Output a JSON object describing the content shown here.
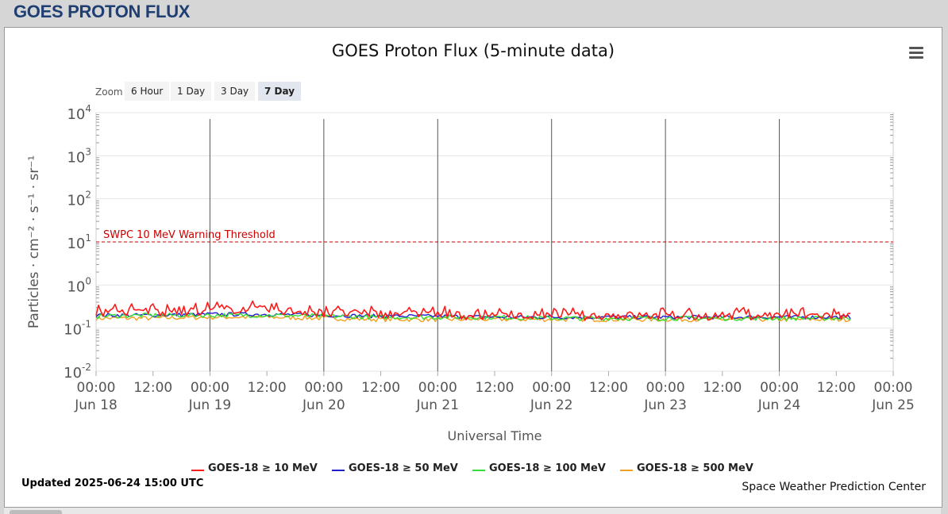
{
  "page": {
    "heading": "GOES PROTON FLUX"
  },
  "zoom": {
    "label": "Zoom",
    "buttons": [
      "6 Hour",
      "1 Day",
      "3 Day",
      "7 Day"
    ],
    "selected": "7 Day"
  },
  "footer": {
    "updated": "Updated 2025-06-24 15:00 UTC",
    "credit": "Space Weather Prediction Center"
  },
  "chart_data": {
    "type": "line",
    "title": "GOES Proton Flux (5-minute data)",
    "xlabel": "Universal Time",
    "ylabel": "Particles · cm⁻² · s⁻¹ · sr⁻¹",
    "yscale": "log",
    "ylim": [
      0.01,
      10000
    ],
    "y_ticks": [
      {
        "base": "10",
        "exp": "-2",
        "value": 0.01
      },
      {
        "base": "10",
        "exp": "-1",
        "value": 0.1
      },
      {
        "base": "10",
        "exp": "0",
        "value": 1
      },
      {
        "base": "10",
        "exp": "1",
        "value": 10
      },
      {
        "base": "10",
        "exp": "2",
        "value": 100
      },
      {
        "base": "10",
        "exp": "3",
        "value": 1000
      },
      {
        "base": "10",
        "exp": "4",
        "value": 10000
      }
    ],
    "xlim": [
      "2025-06-18 00:00",
      "2025-06-25 00:00"
    ],
    "x_ticks": [
      {
        "time": "00:00",
        "date": "Jun 18"
      },
      {
        "time": "12:00",
        "date": ""
      },
      {
        "time": "00:00",
        "date": "Jun 19"
      },
      {
        "time": "12:00",
        "date": ""
      },
      {
        "time": "00:00",
        "date": "Jun 20"
      },
      {
        "time": "12:00",
        "date": ""
      },
      {
        "time": "00:00",
        "date": "Jun 21"
      },
      {
        "time": "12:00",
        "date": ""
      },
      {
        "time": "00:00",
        "date": "Jun 22"
      },
      {
        "time": "12:00",
        "date": ""
      },
      {
        "time": "00:00",
        "date": "Jun 23"
      },
      {
        "time": "12:00",
        "date": ""
      },
      {
        "time": "00:00",
        "date": "Jun 24"
      },
      {
        "time": "12:00",
        "date": ""
      },
      {
        "time": "00:00",
        "date": "Jun 25"
      }
    ],
    "day_lines": [
      "2025-06-19 00:00",
      "2025-06-20 00:00",
      "2025-06-21 00:00",
      "2025-06-22 00:00",
      "2025-06-23 00:00",
      "2025-06-24 00:00"
    ],
    "threshold": {
      "label": "SWPC 10 MeV Warning Threshold",
      "value": 10,
      "color": "#cc0000"
    },
    "series": [
      {
        "name": "GOES-18 ≥ 10 MeV",
        "color": "#ff1a1a",
        "x": [
          "2025-06-18 00:00",
          "2025-06-18 06:00",
          "2025-06-18 12:00",
          "2025-06-18 18:00",
          "2025-06-19 00:00",
          "2025-06-19 06:00",
          "2025-06-19 12:00",
          "2025-06-19 18:00",
          "2025-06-20 00:00",
          "2025-06-20 06:00",
          "2025-06-20 12:00",
          "2025-06-20 18:00",
          "2025-06-21 00:00",
          "2025-06-21 06:00",
          "2025-06-21 12:00",
          "2025-06-21 18:00",
          "2025-06-22 00:00",
          "2025-06-22 06:00",
          "2025-06-22 12:00",
          "2025-06-22 18:00",
          "2025-06-23 00:00",
          "2025-06-23 06:00",
          "2025-06-23 12:00",
          "2025-06-23 18:00",
          "2025-06-24 00:00",
          "2025-06-24 06:00",
          "2025-06-24 12:00",
          "2025-06-24 15:00"
        ],
        "y": [
          0.23,
          0.24,
          0.25,
          0.24,
          0.27,
          0.28,
          0.27,
          0.25,
          0.23,
          0.22,
          0.22,
          0.21,
          0.21,
          0.2,
          0.2,
          0.19,
          0.19,
          0.19,
          0.2,
          0.2,
          0.19,
          0.19,
          0.2,
          0.2,
          0.2,
          0.2,
          0.2,
          0.19
        ]
      },
      {
        "name": "GOES-18 ≥ 50 MeV",
        "color": "#1f1fcc",
        "x": [
          "2025-06-18 00:00",
          "2025-06-18 12:00",
          "2025-06-19 00:00",
          "2025-06-19 12:00",
          "2025-06-20 00:00",
          "2025-06-20 12:00",
          "2025-06-21 00:00",
          "2025-06-21 12:00",
          "2025-06-22 00:00",
          "2025-06-22 12:00",
          "2025-06-23 00:00",
          "2025-06-23 12:00",
          "2025-06-24 00:00",
          "2025-06-24 12:00",
          "2025-06-24 15:00"
        ],
        "y": [
          0.2,
          0.2,
          0.21,
          0.21,
          0.2,
          0.19,
          0.19,
          0.18,
          0.18,
          0.18,
          0.18,
          0.18,
          0.18,
          0.18,
          0.18
        ]
      },
      {
        "name": "GOES-18 ≥ 100 MeV",
        "color": "#33dd33",
        "x": [
          "2025-06-18 00:00",
          "2025-06-18 12:00",
          "2025-06-19 00:00",
          "2025-06-19 12:00",
          "2025-06-20 00:00",
          "2025-06-20 12:00",
          "2025-06-21 00:00",
          "2025-06-21 12:00",
          "2025-06-22 00:00",
          "2025-06-22 12:00",
          "2025-06-23 00:00",
          "2025-06-23 12:00",
          "2025-06-24 00:00",
          "2025-06-24 12:00",
          "2025-06-24 15:00"
        ],
        "y": [
          0.19,
          0.2,
          0.2,
          0.2,
          0.19,
          0.18,
          0.18,
          0.18,
          0.17,
          0.17,
          0.17,
          0.17,
          0.17,
          0.17,
          0.17
        ]
      },
      {
        "name": "GOES-18 ≥ 500 MeV",
        "color": "#f0a020",
        "x": [
          "2025-06-18 00:00",
          "2025-06-18 12:00",
          "2025-06-19 00:00",
          "2025-06-19 12:00",
          "2025-06-20 00:00",
          "2025-06-20 12:00",
          "2025-06-21 00:00",
          "2025-06-21 12:00",
          "2025-06-22 00:00",
          "2025-06-22 12:00",
          "2025-06-23 00:00",
          "2025-06-23 12:00",
          "2025-06-24 00:00",
          "2025-06-24 12:00",
          "2025-06-24 15:00"
        ],
        "y": [
          0.17,
          0.17,
          0.18,
          0.18,
          0.17,
          0.16,
          0.16,
          0.16,
          0.16,
          0.16,
          0.16,
          0.16,
          0.16,
          0.16,
          0.16
        ]
      }
    ],
    "grid": true,
    "legend_position": "bottom"
  }
}
